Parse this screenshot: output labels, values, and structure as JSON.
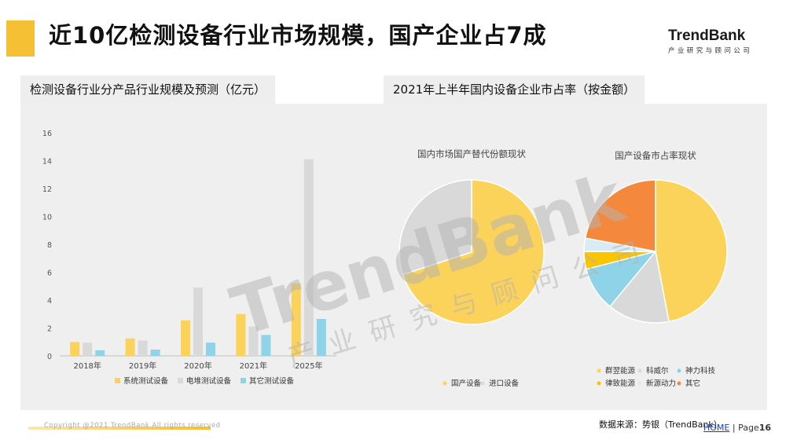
{
  "header": {
    "title": "近10亿检测设备行业市场规模，国产企业占7成",
    "logo_main": "TrendBank",
    "logo_sub": "产业研究与顾问公司"
  },
  "sections": {
    "left_title": "检测设备行业分产品行业规模及预测（亿元）",
    "right_title": "2021年上半年国内设备企业市占率（按金额）"
  },
  "watermark": {
    "main": "TrendBank",
    "sub": "产业研究与顾问公司"
  },
  "footer": {
    "copyright": "Copyright @2021 TrendBank All rights reserved",
    "source": "数据来源：势银（TrendBank）",
    "home": "HOME",
    "page_prefix": " | Page",
    "page_num": "16"
  },
  "colors": {
    "accent": "#f5c033",
    "yellow": "#fbd35b",
    "gray": "#d9d9d9",
    "blue": "#8fd3e8",
    "orange": "#f4893e",
    "gold": "#fbc400",
    "light_blue": "#d7ecf5"
  },
  "chart_data": [
    {
      "type": "bar",
      "categories": [
        "2018年",
        "2019年",
        "2020年",
        "2021年",
        "2025年"
      ],
      "series": [
        {
          "name": "系统测试设备",
          "color": "#fbd35b",
          "values": [
            1.0,
            1.25,
            2.55,
            3.0,
            5.2
          ]
        },
        {
          "name": "电堆测试设备",
          "color": "#d9d9d9",
          "values": [
            0.95,
            1.1,
            4.9,
            2.1,
            14.1
          ]
        },
        {
          "name": "其它测试设备",
          "color": "#8fd3e8",
          "values": [
            0.4,
            0.45,
            0.95,
            1.5,
            2.65
          ]
        }
      ],
      "ylim": [
        0,
        16
      ],
      "yticks": [
        0,
        2,
        4,
        6,
        8,
        10,
        12,
        14,
        16
      ],
      "legend": "bottom"
    },
    {
      "type": "pie",
      "title": "国内市场国产替代份额现状",
      "slices": [
        {
          "label": "国产设备",
          "value": 70,
          "color": "#fbd35b"
        },
        {
          "label": "进口设备",
          "value": 30,
          "color": "#d9d9d9"
        }
      ],
      "legend": "bottom"
    },
    {
      "type": "pie",
      "title": "国产设备市占率现状",
      "slices": [
        {
          "label": "群翌能源",
          "value": 47,
          "color": "#fbd35b"
        },
        {
          "label": "科威尔",
          "value": 14,
          "color": "#d9d9d9"
        },
        {
          "label": "神力科技",
          "value": 10,
          "color": "#8fd3e8"
        },
        {
          "label": "律致能源",
          "value": 4,
          "color": "#fbc400"
        },
        {
          "label": "新源动力",
          "value": 3,
          "color": "#d7ecf5"
        },
        {
          "label": "其它",
          "value": 22,
          "color": "#f4893e"
        }
      ],
      "legend": "bottom"
    }
  ]
}
